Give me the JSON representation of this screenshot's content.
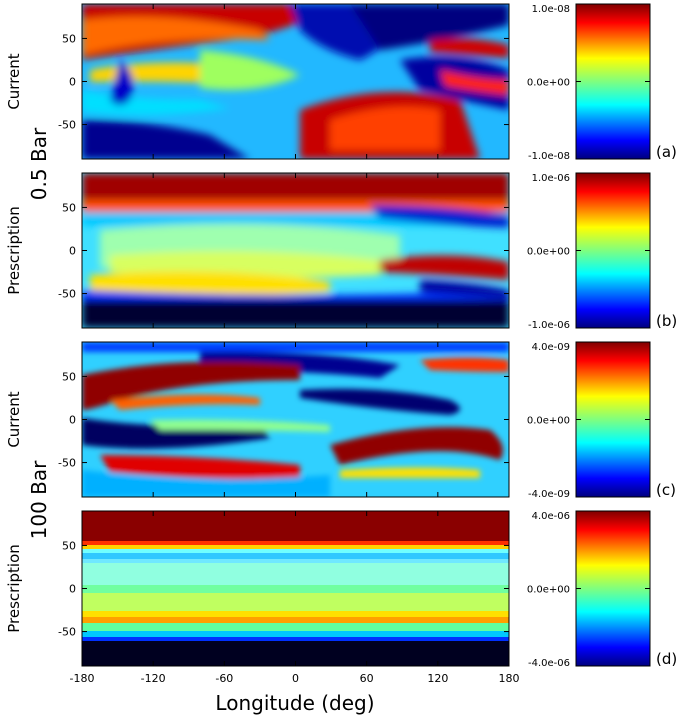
{
  "figure": {
    "x_axis_label": "Longitude (deg)",
    "x_ticks": [
      -180,
      -120,
      -60,
      0,
      60,
      120,
      180
    ],
    "x_tick_labels": [
      "-180",
      "-120",
      "-60",
      "0",
      "60",
      "120",
      "180"
    ],
    "y_ticks": [
      -50,
      0,
      50
    ],
    "y_tick_labels": [
      "-50",
      "0",
      "50"
    ],
    "groups": [
      {
        "pressure_label": "0.5 Bar"
      },
      {
        "pressure_label": "100 Bar"
      }
    ]
  },
  "chart_data": [
    {
      "type": "heatmap",
      "panel_label": "(a)",
      "row_label": "Current",
      "group": "0.5 Bar",
      "xlim": [
        -180,
        180
      ],
      "ylim": [
        -90,
        90
      ],
      "colorbar": {
        "min": -1e-08,
        "max": 1e-08,
        "tick_labels": [
          "1.0e-08",
          "0.0e+00",
          "-1.0e-08"
        ]
      },
      "colormap": "jet"
    },
    {
      "type": "heatmap",
      "panel_label": "(b)",
      "row_label": "Prescription",
      "group": "0.5 Bar",
      "xlim": [
        -180,
        180
      ],
      "ylim": [
        -90,
        90
      ],
      "colorbar": {
        "min": -1e-06,
        "max": 1e-06,
        "tick_labels": [
          "1.0e-06",
          "0.0e+00",
          "-1.0e-06"
        ]
      },
      "colormap": "jet"
    },
    {
      "type": "heatmap",
      "panel_label": "(c)",
      "row_label": "Current",
      "group": "100 Bar",
      "xlim": [
        -180,
        180
      ],
      "ylim": [
        -90,
        90
      ],
      "colorbar": {
        "min": -4e-09,
        "max": 4e-09,
        "tick_labels": [
          "4.0e-09",
          "0.0e+00",
          "-4.0e-09"
        ]
      },
      "colormap": "jet"
    },
    {
      "type": "heatmap",
      "panel_label": "(d)",
      "row_label": "Prescription",
      "group": "100 Bar",
      "xlim": [
        -180,
        180
      ],
      "ylim": [
        -90,
        90
      ],
      "colorbar": {
        "min": -4e-06,
        "max": 4e-06,
        "tick_labels": [
          "4.0e-06",
          "0.0e+00",
          "-4.0e-06"
        ]
      },
      "colormap": "jet"
    }
  ]
}
